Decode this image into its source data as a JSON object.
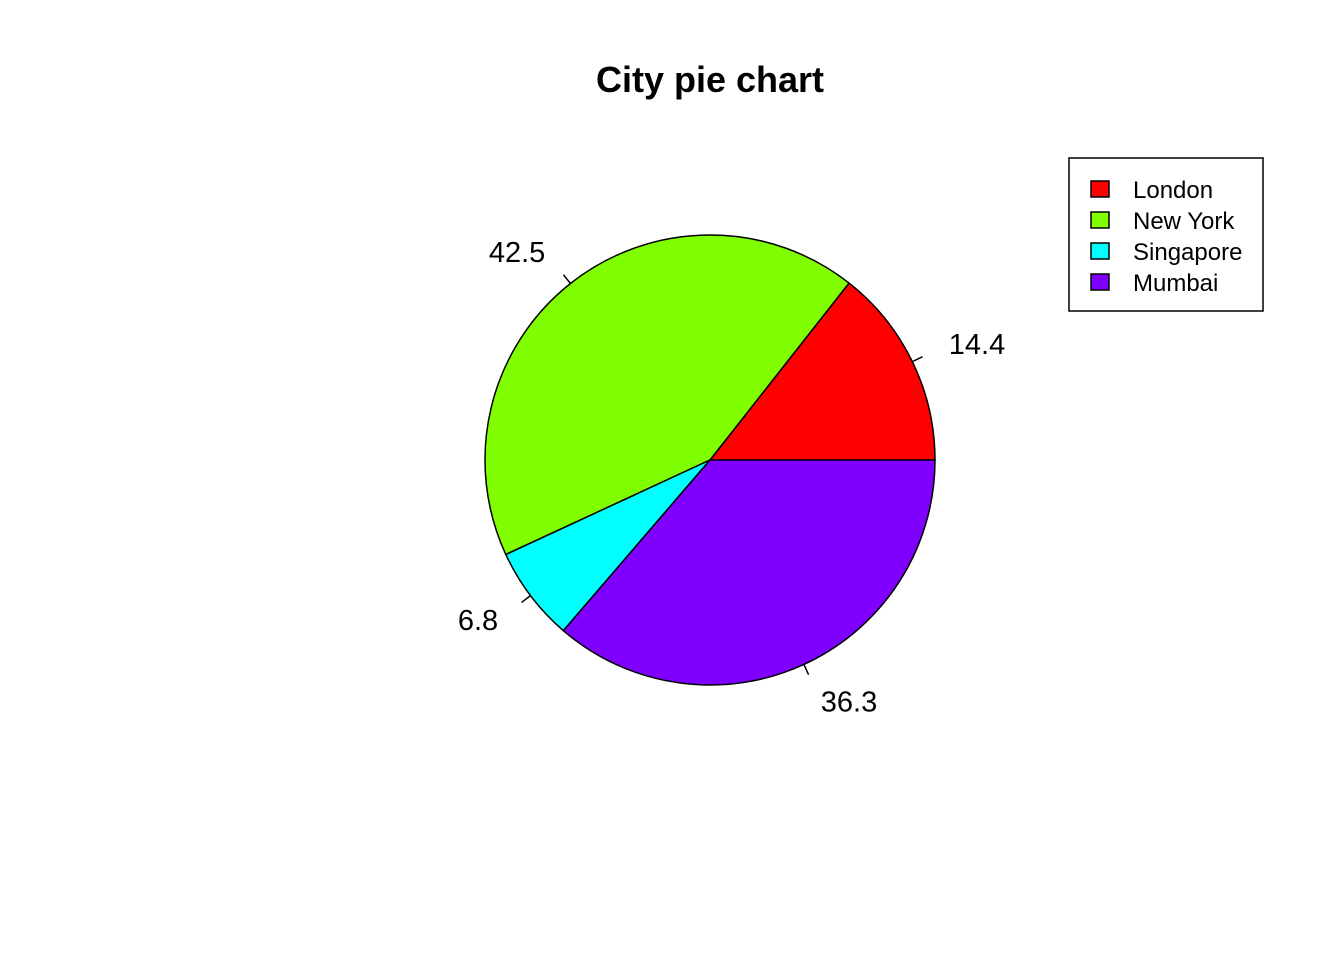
{
  "chart_data": {
    "type": "pie",
    "title": "City pie chart",
    "categories": [
      "London",
      "New York",
      "Singapore",
      "Mumbai"
    ],
    "values": [
      14.4,
      42.5,
      6.8,
      36.3
    ],
    "labels": [
      "14.4",
      "42.5",
      "6.8",
      "36.3"
    ],
    "colors": [
      "#FF0000",
      "#80FF00",
      "#00FFFF",
      "#8000FF"
    ],
    "start_angle_deg": 0,
    "direction": "counterclockwise",
    "legend": {
      "placement": "top-right",
      "entries": [
        "London",
        "New York",
        "Singapore",
        "Mumbai"
      ]
    }
  }
}
